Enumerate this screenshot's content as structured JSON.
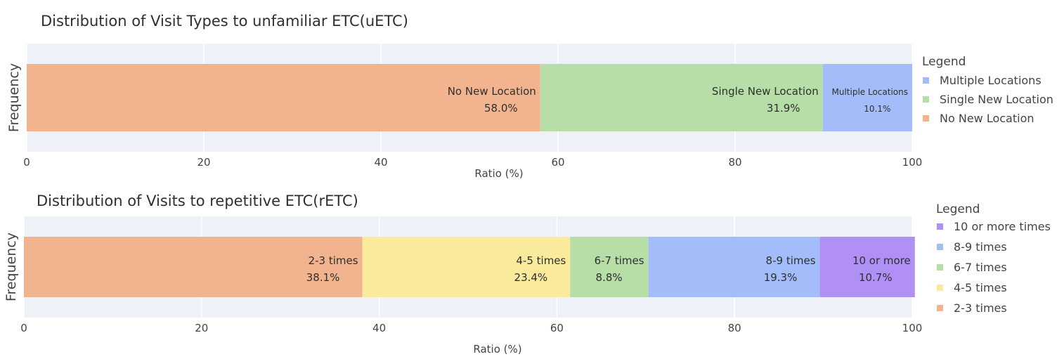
{
  "chart_data": [
    {
      "type": "bar",
      "orientation": "horizontal-stacked",
      "title": "Distribution of Visit Types to unfamiliar ETC(uETC)",
      "xlabel": "Ratio (%)",
      "ylabel": "Frequency",
      "xlim": [
        0,
        100
      ],
      "xticks": [
        "0",
        "20",
        "40",
        "60",
        "80",
        "100"
      ],
      "grid": true,
      "legend_title": "Legend",
      "legend_position": "right",
      "series": [
        {
          "name": "No New Location",
          "value": 58.0,
          "label": "No New Location",
          "pct": "58.0%",
          "color": "#f2b48e"
        },
        {
          "name": "Single New Location",
          "value": 31.9,
          "label": "Single New Location",
          "pct": "31.9%",
          "color": "#b6dea6"
        },
        {
          "name": "Multiple Locations",
          "value": 10.1,
          "label": "Multiple Locations",
          "pct": "10.1%",
          "color": "#a2bdfa"
        }
      ],
      "legend_items": [
        "Multiple Locations",
        "Single New Location",
        "No New Location"
      ]
    },
    {
      "type": "bar",
      "orientation": "horizontal-stacked",
      "title": "Distribution of Visits to repetitive ETC(rETC)",
      "xlabel": "Ratio (%)",
      "ylabel": "Frequency",
      "xlim": [
        0,
        100
      ],
      "xticks": [
        "0",
        "20",
        "40",
        "60",
        "80",
        "100"
      ],
      "grid": true,
      "legend_title": "Legend",
      "legend_position": "right",
      "series": [
        {
          "name": "2-3 times",
          "value": 38.1,
          "label": "2-3 times",
          "pct": "38.1%",
          "color": "#f2b48e"
        },
        {
          "name": "4-5 times",
          "value": 23.4,
          "label": "4-5 times",
          "pct": "23.4%",
          "color": "#f9eb9b"
        },
        {
          "name": "6-7 times",
          "value": 8.8,
          "label": "6-7 times",
          "pct": "8.8%",
          "color": "#b6dea6"
        },
        {
          "name": "8-9 times",
          "value": 19.3,
          "label": "8-9 times",
          "pct": "19.3%",
          "color": "#a2bdfa"
        },
        {
          "name": "10 or more times",
          "value": 10.7,
          "label": "10 or more",
          "pct": "10.7%",
          "color": "#b190f5"
        }
      ],
      "legend_items": [
        "10 or more times",
        "8-9 times",
        "6-7 times",
        "4-5 times",
        "2-3 times"
      ]
    }
  ]
}
